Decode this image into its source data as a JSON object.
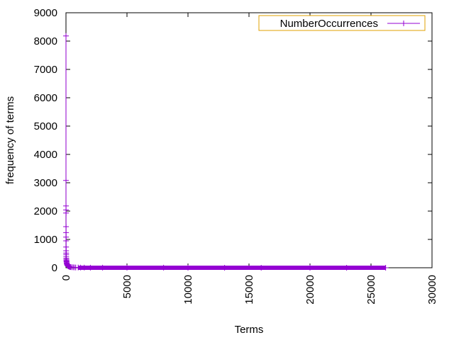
{
  "chart_data": {
    "type": "line",
    "xlabel": "Terms",
    "ylabel": "frequency of terms",
    "xlim": [
      0,
      30000
    ],
    "ylim": [
      0,
      9000
    ],
    "x_ticks": [
      0,
      5000,
      10000,
      15000,
      20000,
      25000,
      30000
    ],
    "y_ticks": [
      0,
      1000,
      2000,
      3000,
      4000,
      5000,
      6000,
      7000,
      8000,
      9000
    ],
    "x_tick_labels": [
      "0",
      "5000",
      "10000",
      "15000",
      "20000",
      "25000",
      "30000"
    ],
    "y_tick_labels": [
      "0",
      "1000",
      "2000",
      "3000",
      "4000",
      "5000",
      "6000",
      "7000",
      "8000",
      "9000"
    ],
    "x_tick_rotation": "vertical",
    "grid": false,
    "legend": {
      "position": "top-right"
    },
    "series": [
      {
        "name": "NumberOccurrences",
        "color": "#9400d3",
        "marker": "plus",
        "line": true,
        "x": [
          1,
          2,
          3,
          4,
          5,
          6,
          7,
          8,
          9,
          10,
          12,
          15,
          18,
          20,
          25,
          30,
          35,
          40,
          45,
          50,
          60,
          70,
          80,
          90,
          100,
          120,
          140,
          160,
          180,
          200,
          250,
          300,
          350,
          400,
          500,
          600,
          700,
          800,
          1000,
          1200,
          1500,
          2000,
          3000,
          5000,
          8000,
          10000,
          13000,
          16000,
          20000,
          23000,
          26200
        ],
        "y": [
          8180,
          3080,
          2180,
          2040,
          1930,
          1450,
          1240,
          1080,
          950,
          730,
          600,
          520,
          470,
          400,
          340,
          300,
          270,
          240,
          220,
          200,
          170,
          150,
          130,
          115,
          100,
          85,
          75,
          65,
          58,
          50,
          40,
          32,
          26,
          22,
          18,
          15,
          12,
          10,
          8,
          6,
          5,
          4,
          3,
          2,
          2,
          1,
          1,
          1,
          1,
          1,
          1
        ]
      }
    ]
  }
}
